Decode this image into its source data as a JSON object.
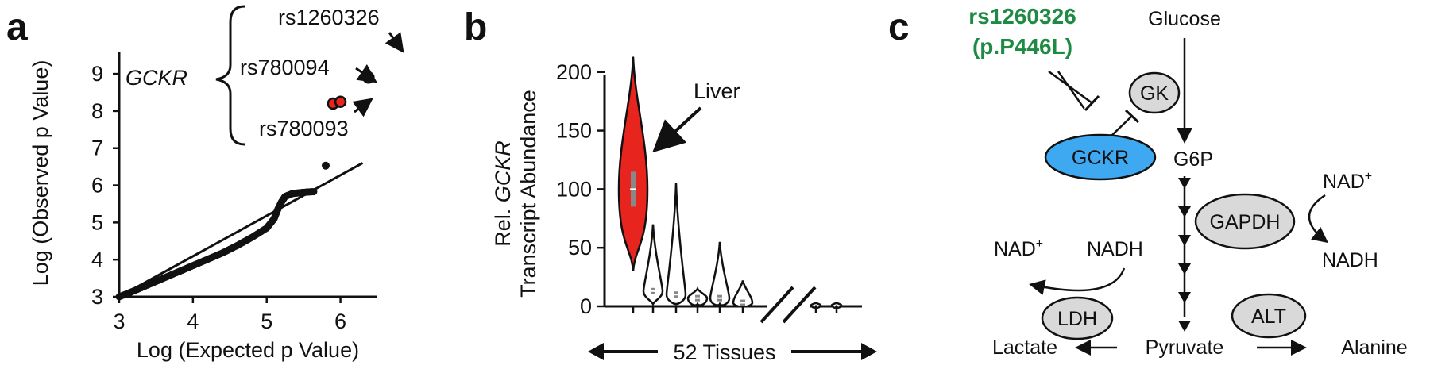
{
  "panels": {
    "a": {
      "label": "a",
      "x_title": "Log (Expected p Value)",
      "y_title": "Log (Observed p Value)",
      "x_ticks": [
        "3",
        "4",
        "5",
        "6"
      ],
      "y_ticks": [
        "3",
        "4",
        "5",
        "6",
        "7",
        "8",
        "9"
      ],
      "gene": "GCKR",
      "snps": [
        "rs1260326",
        "rs780094",
        "rs780093"
      ]
    },
    "b": {
      "label": "b",
      "y_title_prefix": "Rel. ",
      "y_title_gene": "GCKR",
      "y_title_line2": "Transcript Abundance",
      "y_ticks": [
        "0",
        "50",
        "100",
        "150",
        "200"
      ],
      "liver_label": "Liver",
      "tissues_label": "52 Tissues"
    },
    "c": {
      "label": "c",
      "variant_line1": "rs1260326",
      "variant_line2": "(p.P446L)",
      "glucose": "Glucose",
      "gk": "GK",
      "gckr": "GCKR",
      "g6p": "G6P",
      "nad_plus_right": "NAD",
      "gapdh": "GAPDH",
      "nadh_right": "NADH",
      "nad_plus_left": "NAD",
      "nadh_left": "NADH",
      "ldh": "LDH",
      "alt": "ALT",
      "lactate": "Lactate",
      "pyruvate": "Pyruvate",
      "alanine": "Alanine",
      "plus": "+"
    }
  },
  "colors": {
    "red": "#e8241e",
    "gckr_blue": "#3ea8f0",
    "enzyme_gray": "#d9d9d9",
    "variant_green": "#1e8a43"
  },
  "chart_data": [
    {
      "type": "scatter",
      "title": "",
      "xlabel": "Log (Expected p Value)",
      "ylabel": "Log (Observed p Value)",
      "xlim": [
        3,
        6.5
      ],
      "ylim": [
        3,
        9.6
      ],
      "x_ticks": [
        3,
        4,
        5,
        6
      ],
      "y_ticks": [
        3,
        4,
        5,
        6,
        7,
        8,
        9
      ],
      "reference_line": {
        "x": [
          3,
          6.3
        ],
        "y": [
          3,
          6.6
        ]
      },
      "bulk_points": [
        {
          "x": 3.0,
          "y": 3.0
        },
        {
          "x": 3.2,
          "y": 3.16
        },
        {
          "x": 3.4,
          "y": 3.33
        },
        {
          "x": 3.6,
          "y": 3.5
        },
        {
          "x": 3.8,
          "y": 3.67
        },
        {
          "x": 4.0,
          "y": 3.84
        },
        {
          "x": 4.2,
          "y": 4.01
        },
        {
          "x": 4.4,
          "y": 4.18
        },
        {
          "x": 4.6,
          "y": 4.38
        },
        {
          "x": 4.8,
          "y": 4.6
        },
        {
          "x": 5.0,
          "y": 4.85
        },
        {
          "x": 5.1,
          "y": 5.1
        },
        {
          "x": 5.15,
          "y": 5.35
        },
        {
          "x": 5.2,
          "y": 5.55
        },
        {
          "x": 5.25,
          "y": 5.7
        },
        {
          "x": 5.35,
          "y": 5.78
        },
        {
          "x": 5.45,
          "y": 5.8
        },
        {
          "x": 5.55,
          "y": 5.82
        },
        {
          "x": 5.65,
          "y": 5.83
        },
        {
          "x": 5.8,
          "y": 6.53
        }
      ],
      "highlighted_points": [
        {
          "name": "rs780093",
          "x": 5.9,
          "y": 8.2
        },
        {
          "name": "rs780094",
          "x": 6.0,
          "y": 8.25
        },
        {
          "name": "rs1260326",
          "x": 6.38,
          "y": 8.9
        }
      ]
    },
    {
      "type": "violin",
      "title": "",
      "xlabel": "52 Tissues",
      "ylabel": "Rel. GCKR Transcript Abundance",
      "ylim": [
        0,
        210
      ],
      "y_ticks": [
        0,
        50,
        100,
        150,
        200
      ],
      "violins": [
        {
          "tissue": "Liver",
          "min": 30,
          "max": 213,
          "median": 100
        },
        {
          "min": 2,
          "max": 70,
          "median": 13
        },
        {
          "min": 2,
          "max": 105,
          "median": 10
        },
        {
          "min": 2,
          "max": 15,
          "median": 7
        },
        {
          "min": 2,
          "max": 55,
          "median": 7
        },
        {
          "min": 1,
          "max": 22,
          "median": 3
        },
        {
          "min": 0,
          "max": 4,
          "median": 1
        },
        {
          "min": 0,
          "max": 3,
          "median": 1
        },
        {
          "min": 0,
          "max": 3,
          "median": 1
        }
      ]
    }
  ]
}
